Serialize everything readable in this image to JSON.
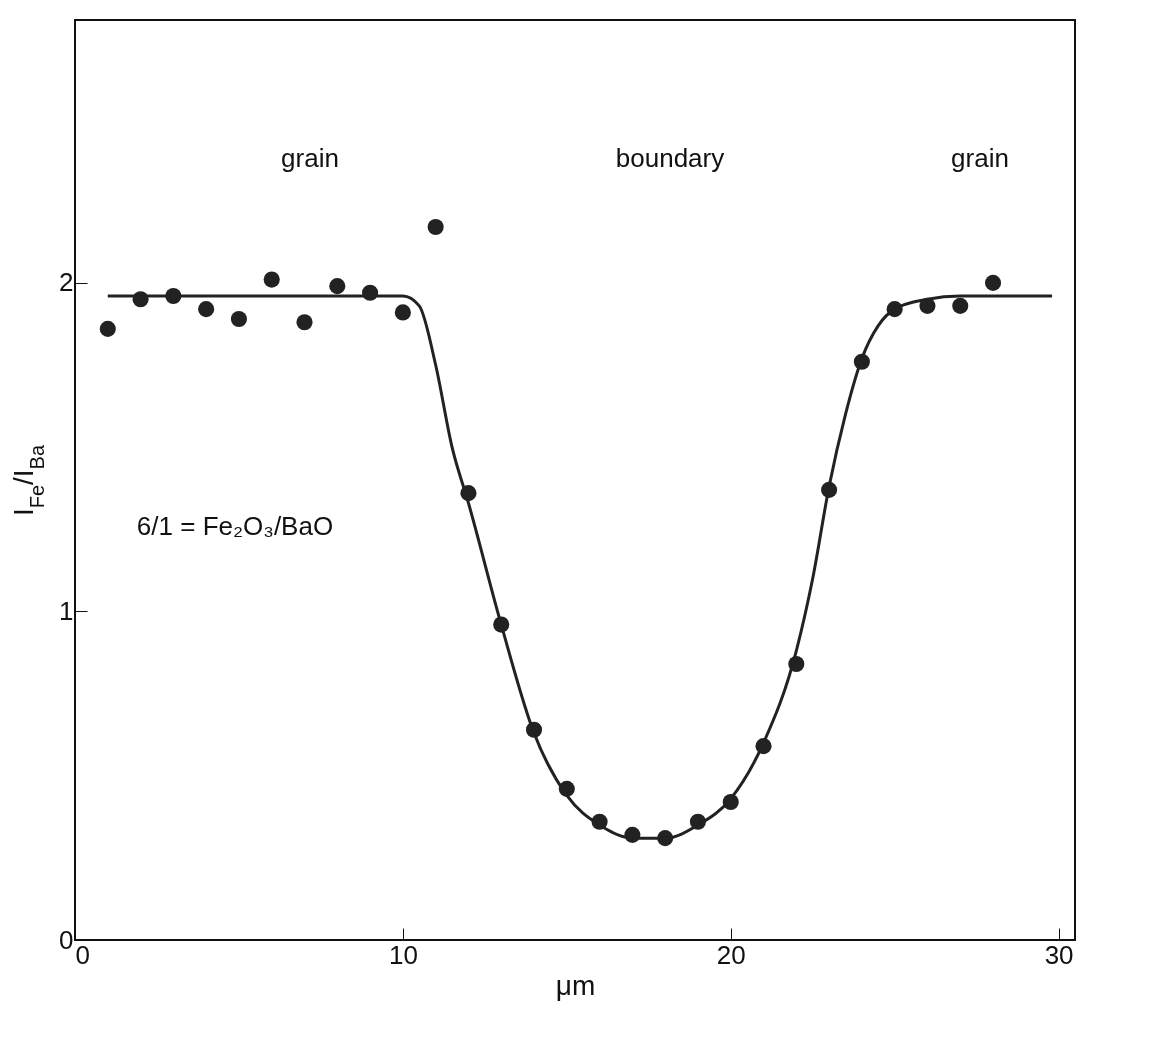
{
  "chart_data": {
    "type": "scatter",
    "xlabel": "μm",
    "ylabel": "I$_{Fe}$/I$_{Ba}$",
    "xlim": [
      0,
      30.5
    ],
    "ylim": [
      0,
      2.8
    ],
    "xticks": [
      0,
      10,
      20,
      30
    ],
    "yticks": [
      0,
      1,
      2
    ],
    "grid": false,
    "series": [
      {
        "marker": "circle",
        "color": "#222222",
        "x": [
          1,
          2,
          3,
          4,
          5,
          6,
          7,
          8,
          9,
          10,
          11,
          12,
          13,
          14,
          15,
          16,
          17,
          18,
          19,
          20,
          21,
          22,
          23,
          24,
          25,
          26,
          27,
          28
        ],
        "values": [
          1.86,
          1.95,
          1.96,
          1.92,
          1.89,
          2.01,
          1.88,
          1.99,
          1.97,
          1.91,
          2.17,
          1.36,
          0.96,
          0.64,
          0.46,
          0.36,
          0.32,
          0.31,
          0.36,
          0.42,
          0.59,
          0.84,
          1.37,
          1.76,
          1.92,
          1.93,
          1.93,
          2.0
        ]
      },
      {
        "type": "line",
        "marker": "none",
        "color": "#222222",
        "x": [
          1,
          5,
          10,
          10.5,
          11,
          11.5,
          12,
          13,
          14,
          15,
          16,
          17,
          18,
          19,
          20,
          21,
          22,
          22.5,
          23,
          23.5,
          24,
          24.5,
          25,
          26,
          27,
          29.8
        ],
        "values": [
          1.96,
          1.96,
          1.96,
          1.93,
          1.75,
          1.5,
          1.33,
          0.96,
          0.63,
          0.44,
          0.35,
          0.31,
          0.31,
          0.35,
          0.43,
          0.6,
          0.88,
          1.1,
          1.38,
          1.6,
          1.77,
          1.87,
          1.92,
          1.95,
          1.96,
          1.96
        ]
      }
    ],
    "annotations": [
      "grain",
      "boundary",
      "grain",
      "6/1 = Fe₂O₃/BaO"
    ]
  }
}
